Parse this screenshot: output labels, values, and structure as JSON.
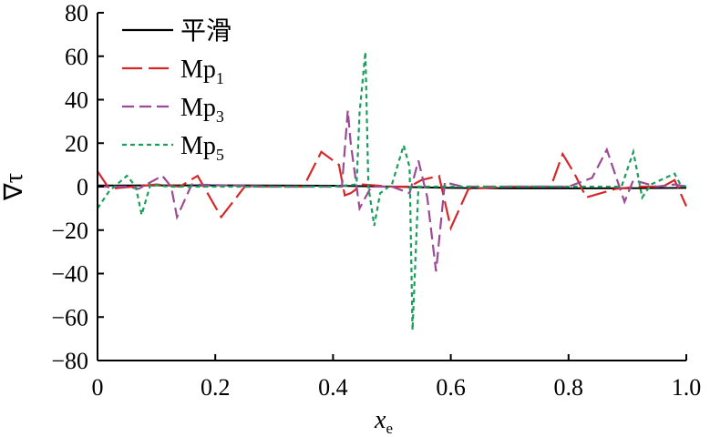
{
  "chart_data": {
    "type": "line",
    "xlabel": "x",
    "xlabel_sub": "e",
    "ylabel": "∇τ",
    "xlim": [
      0,
      1.0
    ],
    "ylim": [
      -80,
      80
    ],
    "xticks": [
      "0",
      "0.2",
      "0.4",
      "0.6",
      "0.8",
      "1.0"
    ],
    "xtick_values": [
      0,
      0.2,
      0.4,
      0.6,
      0.8,
      1.0
    ],
    "yticks": [
      "80",
      "60",
      "40",
      "20",
      "0",
      "−20",
      "−40",
      "−60",
      "−80"
    ],
    "ytick_values": [
      80,
      60,
      40,
      20,
      0,
      -20,
      -40,
      -60,
      -80
    ],
    "legend_position": "top-left",
    "series": [
      {
        "name": "平滑",
        "label_sub": "",
        "color": "#000000",
        "dash": "",
        "x": [
          0,
          0.1,
          0.2,
          0.3,
          0.4,
          0.45,
          0.5,
          0.55,
          0.6,
          0.7,
          0.8,
          0.9,
          1.0
        ],
        "y": [
          0.5,
          0.6,
          0.6,
          0.5,
          0.4,
          0.2,
          0.0,
          -0.3,
          -0.6,
          -0.8,
          -0.8,
          -0.7,
          -0.6
        ]
      },
      {
        "name": "Mp",
        "label_sub": "1",
        "color": "#d62728",
        "dash": "22,7",
        "x": [
          0,
          0.02,
          0.1,
          0.14,
          0.17,
          0.21,
          0.25,
          0.35,
          0.38,
          0.41,
          0.42,
          0.43,
          0.45,
          0.5,
          0.53,
          0.55,
          0.58,
          0.6,
          0.63,
          0.7,
          0.77,
          0.79,
          0.81,
          0.83,
          0.88,
          0.92,
          0.96,
          0.98,
          1.0
        ],
        "y": [
          7,
          -1,
          1,
          0,
          5,
          -14,
          0,
          0,
          16,
          10,
          -4,
          -3,
          1,
          0,
          0,
          3,
          5,
          -19,
          -1,
          0,
          0,
          15,
          6,
          -5,
          -1,
          0,
          0,
          3,
          -9
        ]
      },
      {
        "name": "Mp",
        "label_sub": "3",
        "color": "#9b4a96",
        "dash": "13,6",
        "x": [
          0,
          0.05,
          0.07,
          0.09,
          0.11,
          0.125,
          0.135,
          0.16,
          0.3,
          0.4,
          0.415,
          0.425,
          0.43,
          0.445,
          0.455,
          0.465,
          0.5,
          0.53,
          0.545,
          0.56,
          0.575,
          0.59,
          0.62,
          0.8,
          0.84,
          0.865,
          0.875,
          0.895,
          0.91,
          0.95,
          0.98,
          1.0
        ],
        "y": [
          0,
          0,
          -1,
          2,
          5,
          0,
          -14,
          1,
          0,
          0,
          0,
          35,
          20,
          -10,
          -5,
          0,
          0,
          -3,
          12,
          -5,
          -39,
          2,
          0,
          0,
          4,
          17,
          9,
          -7,
          3,
          0,
          1,
          0
        ]
      },
      {
        "name": "Mp",
        "label_sub": "5",
        "color": "#1a9e5c",
        "dash": "5,4",
        "x": [
          0,
          0.02,
          0.05,
          0.065,
          0.075,
          0.09,
          0.12,
          0.2,
          0.4,
          0.44,
          0.445,
          0.455,
          0.46,
          0.47,
          0.48,
          0.49,
          0.5,
          0.52,
          0.53,
          0.535,
          0.545,
          0.6,
          0.8,
          0.89,
          0.91,
          0.925,
          0.94,
          0.98,
          0.99,
          1.0
        ],
        "y": [
          -10,
          -2,
          5,
          0,
          -13,
          1,
          0,
          0,
          0,
          1,
          34,
          62,
          0,
          -18,
          -3,
          -1,
          1,
          19,
          9,
          -66,
          0,
          0,
          0,
          0,
          16,
          -5,
          1,
          6,
          1,
          0
        ]
      }
    ]
  }
}
